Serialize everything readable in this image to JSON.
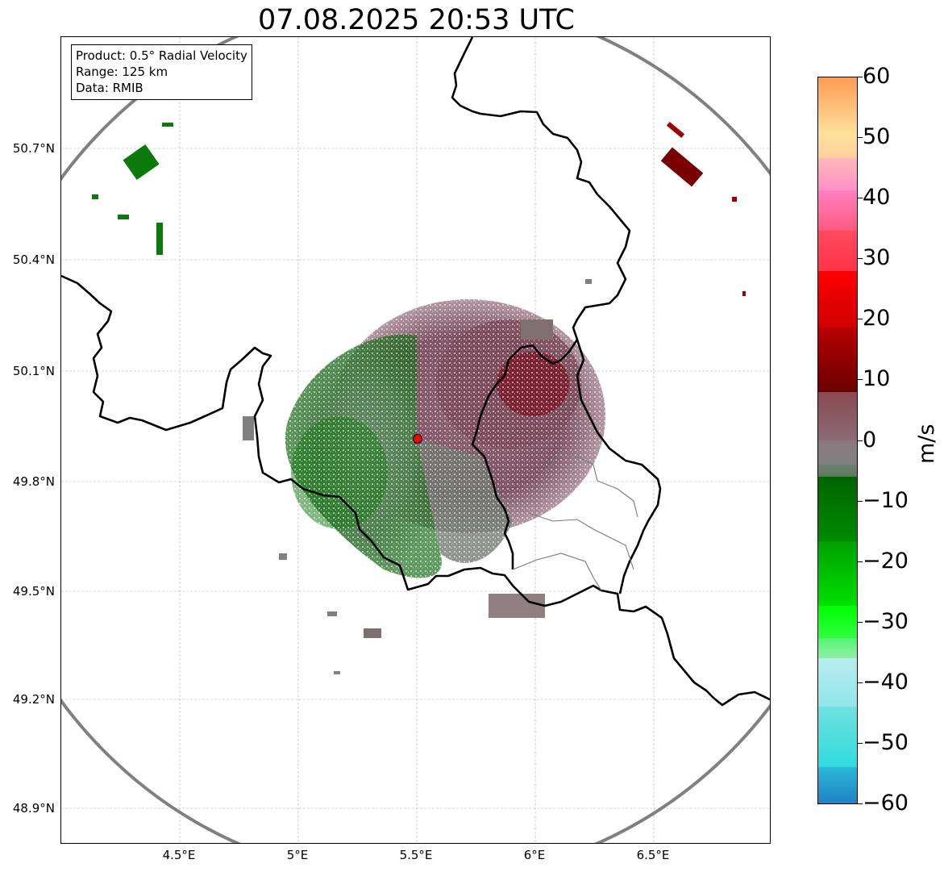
{
  "title": "07.08.2025 20:53 UTC",
  "info_box": {
    "product": "Product: 0.5° Radial Velocity",
    "range": "Range: 125 km",
    "data": "Data: RMIB"
  },
  "axes": {
    "latitude_labels": [
      "50.7°N",
      "50.4°N",
      "50.1°N",
      "49.8°N",
      "49.5°N",
      "49.2°N",
      "48.9°N"
    ],
    "longitude_labels": [
      "4.5°E",
      "5°E",
      "5.5°E",
      "6°E",
      "6.5°E"
    ]
  },
  "colorbar": {
    "unit": "m/s",
    "ticks": [
      "60",
      "50",
      "40",
      "30",
      "20",
      "10",
      "0",
      "−10",
      "−20",
      "−30",
      "−40",
      "−50",
      "−60"
    ],
    "min": -60,
    "max": 60,
    "colors": {
      "strong_outbound": "#800000",
      "outbound": "#ff0000",
      "weak_outbound": "#8b5a6a",
      "zero": "#808080",
      "weak_inbound": "#5e7f5e",
      "inbound": "#006400",
      "strong_inbound": "#00ee00",
      "extreme_inbound": "#40d8e0",
      "extreme_outbound": "#ffa060"
    }
  },
  "map": {
    "radar_site_marker_color": "#ff0000",
    "range_ring_color": "#808080",
    "border_color": "#000000",
    "grid": true
  }
}
